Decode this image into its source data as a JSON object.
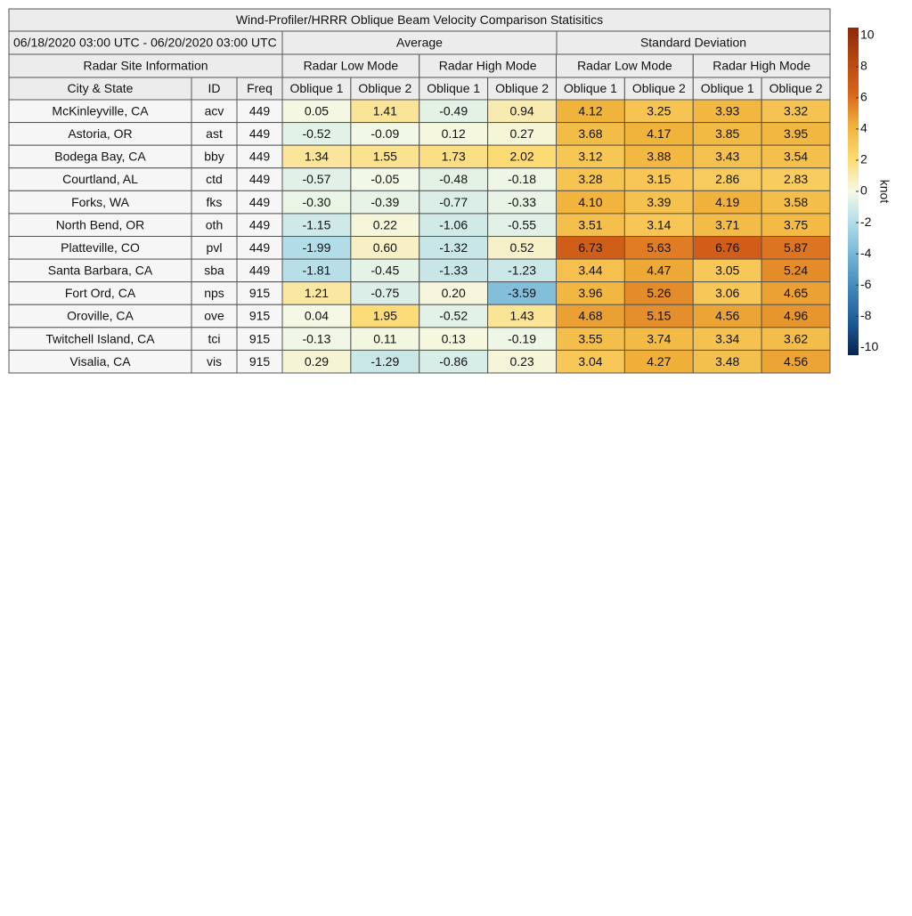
{
  "header": {
    "title": "Wind-Profiler/HRRR Oblique Beam Velocity Comparison Statisitics",
    "period": "06/18/2020 03:00 UTC - 06/20/2020 03:00 UTC",
    "groups": [
      "Average",
      "Standard Deviation"
    ],
    "site_info": "Radar Site Information",
    "modes": [
      "Radar Low Mode",
      "Radar High Mode",
      "Radar Low Mode",
      "Radar High Mode"
    ],
    "columns": [
      "City & State",
      "ID",
      "Freq",
      "Oblique 1",
      "Oblique 2",
      "Oblique 1",
      "Oblique 2",
      "Oblique 1",
      "Oblique 2",
      "Oblique 1",
      "Oblique 2"
    ]
  },
  "table": {
    "rows": [
      [
        "McKinleyville, CA",
        "acv",
        "449",
        "0.05",
        "1.41",
        "-0.49",
        "0.94",
        "4.12",
        "3.25",
        "3.93",
        "3.32"
      ],
      [
        "Astoria, OR",
        "ast",
        "449",
        "-0.52",
        "-0.09",
        "0.12",
        "0.27",
        "3.68",
        "4.17",
        "3.85",
        "3.95"
      ],
      [
        "Bodega Bay, CA",
        "bby",
        "449",
        "1.34",
        "1.55",
        "1.73",
        "2.02",
        "3.12",
        "3.88",
        "3.43",
        "3.54"
      ],
      [
        "Courtland, AL",
        "ctd",
        "449",
        "-0.57",
        "-0.05",
        "-0.48",
        "-0.18",
        "3.28",
        "3.15",
        "2.86",
        "2.83"
      ],
      [
        "Forks, WA",
        "fks",
        "449",
        "-0.30",
        "-0.39",
        "-0.77",
        "-0.33",
        "4.10",
        "3.39",
        "4.19",
        "3.58"
      ],
      [
        "North Bend, OR",
        "oth",
        "449",
        "-1.15",
        "0.22",
        "-1.06",
        "-0.55",
        "3.51",
        "3.14",
        "3.71",
        "3.75"
      ],
      [
        "Platteville, CO",
        "pvl",
        "449",
        "-1.99",
        "0.60",
        "-1.32",
        "0.52",
        "6.73",
        "5.63",
        "6.76",
        "5.87"
      ],
      [
        "Santa Barbara, CA",
        "sba",
        "449",
        "-1.81",
        "-0.45",
        "-1.33",
        "-1.23",
        "3.44",
        "4.47",
        "3.05",
        "5.24"
      ],
      [
        "Fort Ord, CA",
        "nps",
        "915",
        "1.21",
        "-0.75",
        "0.20",
        "-3.59",
        "3.96",
        "5.26",
        "3.06",
        "4.65"
      ],
      [
        "Oroville, CA",
        "ove",
        "915",
        "0.04",
        "1.95",
        "-0.52",
        "1.43",
        "4.68",
        "5.15",
        "4.56",
        "4.96"
      ],
      [
        "Twitchell Island, CA",
        "tci",
        "915",
        "-0.13",
        "0.11",
        "0.13",
        "-0.19",
        "3.55",
        "3.74",
        "3.34",
        "3.62"
      ],
      [
        "Visalia, CA",
        "vis",
        "915",
        "0.29",
        "-1.29",
        "-0.86",
        "0.23",
        "3.04",
        "4.27",
        "3.48",
        "4.56"
      ]
    ]
  },
  "colorbar": {
    "label": "knot",
    "lim": [
      -10.5,
      10.5
    ],
    "ticks": [
      -10,
      -8,
      -6,
      -4,
      -2,
      0,
      2,
      4,
      6,
      8,
      10
    ],
    "colormap": [
      "#08244f",
      "#1f5a96",
      "#3f86ba",
      "#72b3d4",
      "#aedbe8",
      "#f4f9e6",
      "#fdda70",
      "#f0b23a",
      "#d8641a",
      "#b84610",
      "#8e2a0b"
    ]
  }
}
